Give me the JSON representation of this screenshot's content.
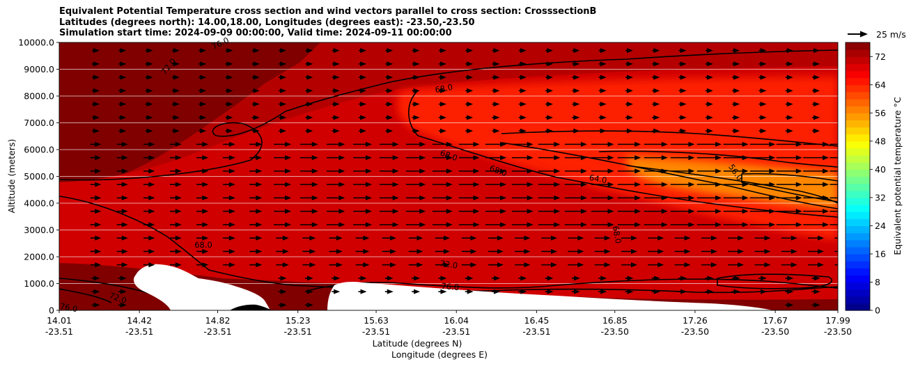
{
  "chart_data": {
    "type": "heatmap",
    "title_lines": [
      "Equivalent Potential Temperature cross section and wind vectors parallel to cross section: CrosssectionB",
      "Latitudes (degrees north): 14.00,18.00, Longitudes (degrees east): -23.50,-23.50",
      "Simulation start time: 2024-09-09 00:00:00, Valid time: 2024-09-11 00:00:00"
    ],
    "xlabel_lines": [
      "Latitude (degrees N)",
      "Longitude (degrees E)"
    ],
    "ylabel": "Altitude (meters)",
    "x_ticks": [
      {
        "lat": "14.01",
        "lon": "-23.51"
      },
      {
        "lat": "14.42",
        "lon": "-23.51"
      },
      {
        "lat": "14.82",
        "lon": "-23.51"
      },
      {
        "lat": "15.23",
        "lon": "-23.51"
      },
      {
        "lat": "15.63",
        "lon": "-23.51"
      },
      {
        "lat": "16.04",
        "lon": "-23.51"
      },
      {
        "lat": "16.45",
        "lon": "-23.51"
      },
      {
        "lat": "16.85",
        "lon": "-23.50"
      },
      {
        "lat": "17.26",
        "lon": "-23.50"
      },
      {
        "lat": "17.67",
        "lon": "-23.50"
      },
      {
        "lat": "17.99",
        "lon": "-23.50"
      }
    ],
    "x_range": [
      14.01,
      17.99
    ],
    "y_ticks": [
      "0",
      "1000.0",
      "2000.0",
      "3000.0",
      "4000.0",
      "5000.0",
      "6000.0",
      "7000.0",
      "8000.0",
      "9000.0",
      "10000.0"
    ],
    "y_range": [
      0,
      10000
    ],
    "grid": "horizontal",
    "colorbar": {
      "label": "Equivalent potential temperature $^\\circ$C",
      "label_text": "Equivalent potential temperature °C",
      "ticks": [
        "0",
        "8",
        "16",
        "24",
        "32",
        "40",
        "48",
        "56",
        "64",
        "72"
      ],
      "range": [
        0,
        76
      ],
      "colormap": "jet"
    },
    "contour_labels": [
      "76.0",
      "72.0",
      "68.0",
      "64.0",
      "56.0"
    ],
    "fields": [
      {
        "name": "theta_e_regions",
        "regions": [
          {
            "zone": "upper-left",
            "value": 76
          },
          {
            "zone": "low-level-left",
            "value": 76
          },
          {
            "zone": "upper-band",
            "value": 72
          },
          {
            "zone": "middle",
            "value": 70
          },
          {
            "zone": "right-mid-level",
            "value": 64
          },
          {
            "zone": "right-core",
            "value": 56
          }
        ]
      }
    ],
    "wind_vectors": {
      "direction": "parallel (left to right)",
      "reference_label": "25 m/s",
      "reference_speed": 25
    },
    "terrain_color": "#000000",
    "missing_color": "#ffffff"
  }
}
